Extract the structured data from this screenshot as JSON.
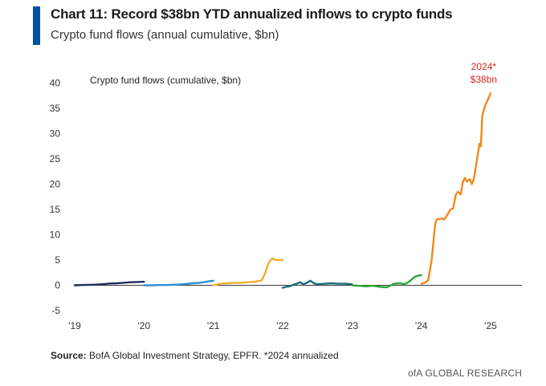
{
  "header": {
    "title": "Chart 11: Record $38bn YTD annualized inflows to crypto funds",
    "subtitle": "Crypto fund flows (annual cumulative, $bn)"
  },
  "footer": {
    "source_label": "Source:",
    "source_text": " BofA Global Investment Strategy, EPFR. *2024 annualized",
    "brand": "ofA GLOBAL RESEARCH"
  },
  "chart_data": {
    "type": "line",
    "title": "Chart 11: Record $38bn YTD annualized inflows to crypto funds",
    "subtitle": "Crypto fund flows (annual cumulative, $bn)",
    "inner_label": "Crypto fund flows (cumulative, $bn)",
    "xlabel": "",
    "ylabel": "",
    "ylim": [
      -5,
      40
    ],
    "xlim": [
      2019,
      2025.45
    ],
    "yticks": [
      -5,
      0,
      5,
      10,
      15,
      20,
      25,
      30,
      35,
      40
    ],
    "xticks": [
      {
        "value": 2019,
        "label": "'19"
      },
      {
        "value": 2020,
        "label": "'20"
      },
      {
        "value": 2021,
        "label": "'21"
      },
      {
        "value": 2022,
        "label": "'22"
      },
      {
        "value": 2023,
        "label": "'23"
      },
      {
        "value": 2024,
        "label": "'24"
      },
      {
        "value": 2025,
        "label": "'25"
      }
    ],
    "grid": false,
    "legend": "none",
    "annotation": {
      "line1": "2024*",
      "line2": "$38bn",
      "color": "#d7261e",
      "x": 2024.9,
      "y": 38
    },
    "series": [
      {
        "color": "#1f2f5c",
        "points": [
          [
            2019.0,
            0.0
          ],
          [
            2019.1,
            0.05
          ],
          [
            2019.2,
            0.1
          ],
          [
            2019.3,
            0.12
          ],
          [
            2019.4,
            0.2
          ],
          [
            2019.5,
            0.35
          ],
          [
            2019.6,
            0.4
          ],
          [
            2019.7,
            0.5
          ],
          [
            2019.8,
            0.6
          ],
          [
            2019.9,
            0.65
          ],
          [
            2020.0,
            0.7
          ]
        ]
      },
      {
        "color": "#2e8fd3",
        "points": [
          [
            2020.0,
            0.0
          ],
          [
            2020.1,
            0.0
          ],
          [
            2020.2,
            0.05
          ],
          [
            2020.3,
            0.05
          ],
          [
            2020.4,
            0.1
          ],
          [
            2020.5,
            0.15
          ],
          [
            2020.6,
            0.25
          ],
          [
            2020.7,
            0.4
          ],
          [
            2020.8,
            0.5
          ],
          [
            2020.9,
            0.7
          ],
          [
            2021.0,
            0.9
          ]
        ]
      },
      {
        "color": "#f0b030",
        "points": [
          [
            2021.0,
            0.0
          ],
          [
            2021.1,
            0.3
          ],
          [
            2021.2,
            0.4
          ],
          [
            2021.3,
            0.5
          ],
          [
            2021.4,
            0.5
          ],
          [
            2021.5,
            0.6
          ],
          [
            2021.6,
            0.7
          ],
          [
            2021.7,
            1.0
          ],
          [
            2021.75,
            2.5
          ],
          [
            2021.8,
            4.5
          ],
          [
            2021.85,
            5.3
          ],
          [
            2021.9,
            5.0
          ],
          [
            2022.0,
            5.0
          ]
        ]
      },
      {
        "color": "#1d6b7a",
        "points": [
          [
            2022.0,
            -0.5
          ],
          [
            2022.05,
            -0.3
          ],
          [
            2022.1,
            -0.2
          ],
          [
            2022.15,
            0.1
          ],
          [
            2022.2,
            0.3
          ],
          [
            2022.25,
            0.6
          ],
          [
            2022.3,
            0.2
          ],
          [
            2022.35,
            0.5
          ],
          [
            2022.4,
            0.9
          ],
          [
            2022.45,
            0.4
          ],
          [
            2022.5,
            0.2
          ],
          [
            2022.6,
            0.3
          ],
          [
            2022.7,
            0.4
          ],
          [
            2022.8,
            0.3
          ],
          [
            2022.9,
            0.3
          ],
          [
            2023.0,
            0.2
          ]
        ]
      },
      {
        "color": "#2ea836",
        "points": [
          [
            2023.0,
            0.0
          ],
          [
            2023.1,
            -0.1
          ],
          [
            2023.2,
            -0.2
          ],
          [
            2023.3,
            -0.1
          ],
          [
            2023.4,
            -0.3
          ],
          [
            2023.5,
            -0.4
          ],
          [
            2023.55,
            -0.1
          ],
          [
            2023.6,
            0.3
          ],
          [
            2023.7,
            0.4
          ],
          [
            2023.75,
            0.2
          ],
          [
            2023.8,
            0.5
          ],
          [
            2023.85,
            1.0
          ],
          [
            2023.9,
            1.6
          ],
          [
            2023.95,
            1.9
          ],
          [
            2024.0,
            2.0
          ]
        ]
      },
      {
        "color": "#f08a1d",
        "points": [
          [
            2024.0,
            0.3
          ],
          [
            2024.05,
            0.5
          ],
          [
            2024.1,
            1.0
          ],
          [
            2024.15,
            5.0
          ],
          [
            2024.2,
            12.0
          ],
          [
            2024.22,
            13.0
          ],
          [
            2024.3,
            13.2
          ],
          [
            2024.33,
            13.0
          ],
          [
            2024.38,
            14.0
          ],
          [
            2024.42,
            15.0
          ],
          [
            2024.46,
            15.2
          ],
          [
            2024.5,
            18.0
          ],
          [
            2024.53,
            18.5
          ],
          [
            2024.57,
            18.0
          ],
          [
            2024.6,
            20.5
          ],
          [
            2024.63,
            21.2
          ],
          [
            2024.66,
            20.5
          ],
          [
            2024.7,
            21.0
          ],
          [
            2024.73,
            20.0
          ],
          [
            2024.76,
            21.2
          ],
          [
            2024.8,
            24.5
          ],
          [
            2024.84,
            28.0
          ],
          [
            2024.86,
            27.5
          ],
          [
            2024.88,
            33.5
          ],
          [
            2024.92,
            35.5
          ],
          [
            2024.97,
            37.0
          ],
          [
            2025.0,
            38.0
          ]
        ]
      }
    ]
  }
}
